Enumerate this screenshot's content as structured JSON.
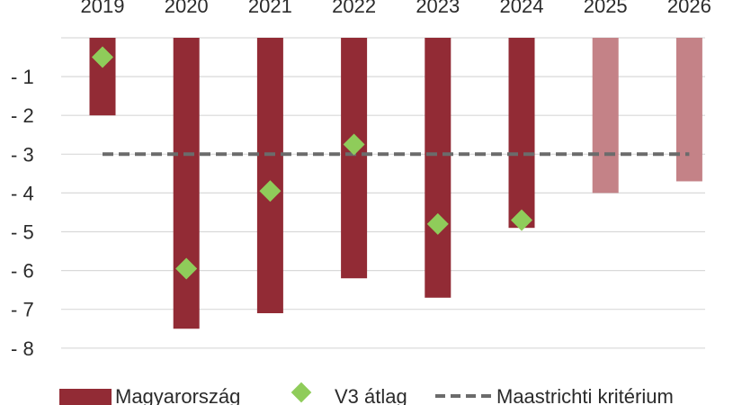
{
  "chart_data": {
    "type": "bar",
    "categories": [
      "2019",
      "2020",
      "2021",
      "2022",
      "2023",
      "2024",
      "2025",
      "2026"
    ],
    "series": [
      {
        "name": "Magyarország",
        "kind": "bar",
        "values": [
          -2.0,
          -7.5,
          -7.1,
          -6.2,
          -6.7,
          -4.9,
          -4.0,
          -3.7
        ],
        "forecast_from_index": 6,
        "color": "#922b35",
        "forecast_color": "#c48287"
      },
      {
        "name": "V3 átlag",
        "kind": "marker-diamond",
        "values": [
          -0.5,
          -5.95,
          -3.95,
          -2.75,
          -4.8,
          -4.7,
          null,
          null
        ],
        "color": "#8fcc5a"
      },
      {
        "name": "Maastrichti kritérium",
        "kind": "dashed-line",
        "values": [
          -3,
          -3,
          -3,
          -3,
          -3,
          -3,
          -3,
          -3
        ],
        "color": "#6b6b6b"
      }
    ],
    "y_ticks": [
      "- 1",
      "- 2",
      "- 3",
      "- 4",
      "- 5",
      "- 6",
      "- 7",
      "- 8"
    ],
    "y_tick_values": [
      -1,
      -2,
      -3,
      -4,
      -5,
      -6,
      -7,
      -8
    ],
    "ylim": [
      -8,
      0
    ],
    "grid": true,
    "legend_position": "bottom",
    "xaxis_position": "top"
  }
}
